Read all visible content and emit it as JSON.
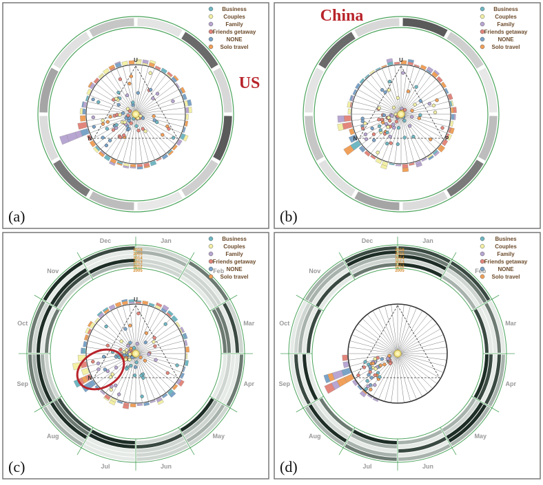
{
  "panels": [
    {
      "id": "a",
      "label": "(a)",
      "country": "US",
      "ring": "plain",
      "seed": 11,
      "emptyCenter": false
    },
    {
      "id": "b",
      "label": "(b)",
      "country": "China",
      "ring": "plain",
      "seed": 23,
      "emptyCenter": false
    },
    {
      "id": "c",
      "label": "(c)",
      "country": "",
      "ring": "months",
      "seed": 37,
      "emptyCenter": false,
      "highlight": true
    },
    {
      "id": "d",
      "label": "(d)",
      "country": "",
      "ring": "months",
      "seed": 51,
      "emptyCenter": true
    }
  ],
  "legend": [
    {
      "label": "Business",
      "color": "#6fb7c3"
    },
    {
      "label": "Couples",
      "color": "#f3f0a6"
    },
    {
      "label": "Family",
      "color": "#b8a6d2"
    },
    {
      "label": "Friends getaway",
      "color": "#e3867c"
    },
    {
      "label": "NONE",
      "color": "#7aa3c8"
    },
    {
      "label": "Solo travel",
      "color": "#f0a05a"
    }
  ],
  "legend_d": [
    "Busines",
    "Couples",
    "Family",
    "Friends getaway",
    "NONE",
    "Solo travel"
  ],
  "months": [
    "Dec",
    "Jan",
    "Feb",
    "Mar",
    "Apr",
    "May",
    "Jun",
    "Jul",
    "Aug",
    "Sep",
    "Oct",
    "Nov"
  ],
  "years": [
    "2016",
    "2015",
    "2014",
    "2013",
    "2012",
    "2005"
  ],
  "axis_labels": {
    "top": "U",
    "left": "N",
    "right": "P"
  }
}
